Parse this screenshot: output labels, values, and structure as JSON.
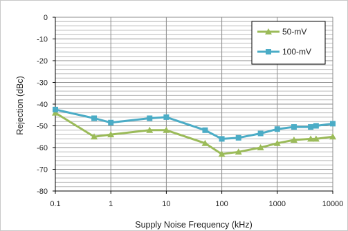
{
  "chart_data": {
    "type": "line",
    "xlabel": "Supply Noise Frequency (kHz)",
    "ylabel": "Rejection (dBc)",
    "x_scale": "log",
    "xlim": [
      0.1,
      10000
    ],
    "ylim": [
      -80,
      0
    ],
    "x_ticks": [
      "0.1",
      "1",
      "10",
      "100",
      "1000",
      "10000"
    ],
    "y_ticks": [
      "0",
      "-10",
      "-20",
      "-30",
      "-40",
      "-50",
      "-60",
      "-70",
      "-80"
    ],
    "grid": true,
    "legend_position": "top-right",
    "series": [
      {
        "name": "50-mV",
        "color": "#9bbb59",
        "marker": "triangle",
        "x": [
          0.1,
          0.5,
          1,
          5,
          10,
          50,
          100,
          200,
          500,
          1000,
          2000,
          4000,
          5000,
          10000
        ],
        "y": [
          -44,
          -55,
          -54,
          -52,
          -52,
          -58,
          -63,
          -62,
          -60,
          -58,
          -56.5,
          -56,
          -56,
          -55
        ]
      },
      {
        "name": "100-mV",
        "color": "#4bacc6",
        "marker": "square",
        "x": [
          0.1,
          0.5,
          1,
          5,
          10,
          50,
          100,
          200,
          500,
          1000,
          2000,
          4000,
          5000,
          10000
        ],
        "y": [
          -42.5,
          -46.5,
          -48.5,
          -46.5,
          -46,
          -52,
          -56,
          -55.5,
          -53.5,
          -51.5,
          -50.5,
          -50.5,
          -50,
          -49
        ]
      }
    ]
  }
}
